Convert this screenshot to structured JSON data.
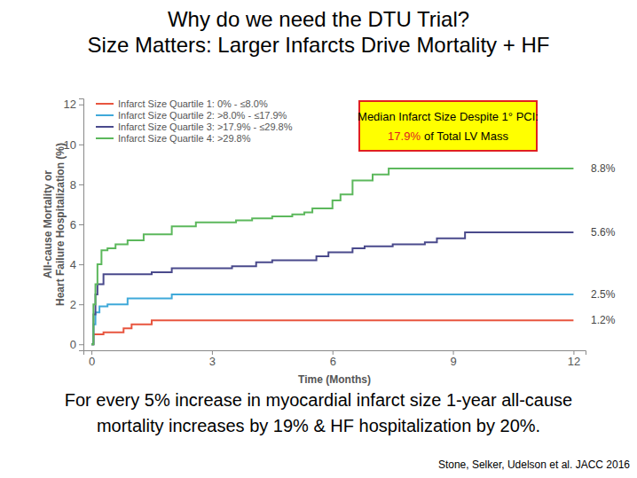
{
  "chart_data": {
    "type": "line",
    "title": [
      "Why do we need the DTU Trial?",
      "Size Matters: Larger Infarcts Drive Mortality + HF"
    ],
    "xlabel": "Time (Months)",
    "ylabel": [
      "All-cause Mortality or",
      "Heart Failure Hospitalization (%)"
    ],
    "xlim": [
      -0.2,
      12.3
    ],
    "ylim": [
      -0.3,
      12.3
    ],
    "xticks": [
      0,
      3,
      6,
      9,
      12
    ],
    "yticks": [
      0,
      2,
      4,
      6,
      8,
      10,
      12
    ],
    "legend": "upper left",
    "line_style": "step",
    "series": [
      {
        "name": "Infarct Size Quartile 1:  0% - ≤8.0%",
        "color": "#e8553f",
        "x": [
          0,
          0.05,
          0.3,
          0.8,
          1.0,
          1.5,
          12
        ],
        "values": [
          0.0,
          0.5,
          0.6,
          0.8,
          1.0,
          1.2,
          1.2
        ],
        "end_value": 1.2,
        "end_label": "1.2%"
      },
      {
        "name": "Infarct Size Quartile 2:  >8.0% - ≤17.9%",
        "color": "#3fa9d9",
        "x": [
          0,
          0.05,
          0.1,
          0.2,
          0.4,
          0.9,
          2.0,
          12
        ],
        "values": [
          0.0,
          1.0,
          1.6,
          1.9,
          2.0,
          2.3,
          2.5,
          2.5
        ],
        "end_value": 2.5,
        "end_label": "2.5%"
      },
      {
        "name": "Infarct Size Quartile 3:  >17.9% - ≤29.8%",
        "color": "#4a4a8c",
        "x": [
          0,
          0.05,
          0.1,
          0.15,
          0.3,
          1.5,
          2.0,
          3.5,
          4.1,
          4.5,
          5.6,
          5.9,
          6.5,
          6.8,
          7.5,
          8.3,
          8.6,
          9.3,
          12
        ],
        "values": [
          0.0,
          1.5,
          2.5,
          3.0,
          3.5,
          3.6,
          3.8,
          3.9,
          4.1,
          4.2,
          4.4,
          4.6,
          4.8,
          4.9,
          5.0,
          5.1,
          5.3,
          5.6,
          5.6
        ],
        "end_value": 5.6,
        "end_label": "5.6%"
      },
      {
        "name": "Infarct Size Quartile 4:  >29.8%",
        "color": "#5cb85c",
        "x": [
          0,
          0.05,
          0.1,
          0.15,
          0.25,
          0.4,
          0.6,
          0.9,
          1.3,
          2.0,
          2.6,
          3.6,
          4.0,
          4.5,
          5.0,
          5.3,
          5.5,
          6.0,
          6.2,
          6.5,
          7.0,
          7.4,
          12
        ],
        "values": [
          0.0,
          2.0,
          3.0,
          4.0,
          4.7,
          4.8,
          5.0,
          5.2,
          5.5,
          5.9,
          6.1,
          6.2,
          6.3,
          6.4,
          6.5,
          6.6,
          6.8,
          7.2,
          7.5,
          8.2,
          8.5,
          8.8,
          8.8
        ],
        "end_value": 8.8,
        "end_label": "8.8%"
      }
    ],
    "annotation": {
      "line1": "Median Infarct Size Despite 1° PCI:",
      "highlight": "17.9%",
      "line2": "of Total LV Mass"
    },
    "caption": [
      "For every 5% increase in myocardial infarct size 1-year all-cause",
      "mortality increases by 19% & HF hospitalization by 20%."
    ],
    "source": "Stone, Selker, Udelson et al. JACC 2016"
  }
}
